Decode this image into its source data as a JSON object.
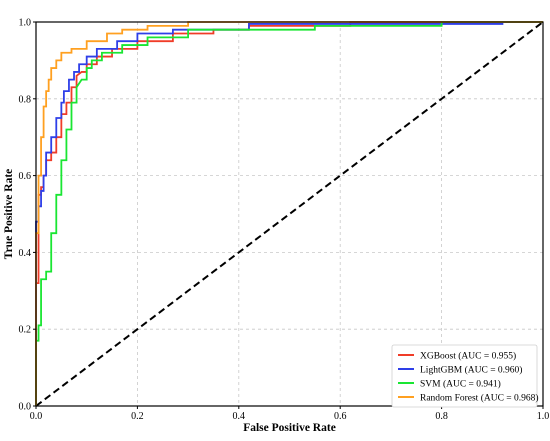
{
  "chart_data": {
    "type": "line",
    "title": "",
    "xlabel": "False Positive Rate",
    "ylabel": "True Positive Rate",
    "xlim": [
      0.0,
      1.0
    ],
    "ylim": [
      0.0,
      1.0
    ],
    "xticks": [
      "0.0",
      "0.2",
      "0.4",
      "0.6",
      "0.8",
      "1.0"
    ],
    "yticks": [
      "0.0",
      "0.2",
      "0.4",
      "0.6",
      "0.8",
      "1.0"
    ],
    "grid": true,
    "legend_position": "lower-right",
    "diagonal": {
      "style": "dashed",
      "color": "#000000",
      "x": [
        0.0,
        1.0
      ],
      "y": [
        0.0,
        1.0
      ]
    },
    "series": [
      {
        "name": "XGBoost (AUC = 0.955)",
        "color": "#f03c28",
        "x": [
          0.0,
          0.0,
          0.005,
          0.005,
          0.01,
          0.01,
          0.015,
          0.015,
          0.02,
          0.02,
          0.03,
          0.03,
          0.04,
          0.04,
          0.05,
          0.05,
          0.06,
          0.06,
          0.07,
          0.07,
          0.08,
          0.08,
          0.09,
          0.1,
          0.1,
          0.12,
          0.12,
          0.15,
          0.15,
          0.2,
          0.2,
          0.27,
          0.27,
          0.35,
          0.35,
          0.42,
          0.42,
          0.62,
          0.62,
          1.0
        ],
        "y": [
          0.0,
          0.32,
          0.32,
          0.55,
          0.55,
          0.57,
          0.57,
          0.6,
          0.6,
          0.64,
          0.64,
          0.66,
          0.66,
          0.7,
          0.7,
          0.76,
          0.76,
          0.79,
          0.79,
          0.83,
          0.83,
          0.86,
          0.87,
          0.87,
          0.89,
          0.89,
          0.91,
          0.91,
          0.93,
          0.93,
          0.95,
          0.95,
          0.97,
          0.97,
          0.98,
          0.98,
          0.99,
          0.99,
          1.0,
          1.0
        ]
      },
      {
        "name": "LightGBM (AUC = 0.960)",
        "color": "#2e3fe8",
        "x": [
          0.0,
          0.0,
          0.005,
          0.005,
          0.01,
          0.01,
          0.015,
          0.015,
          0.02,
          0.02,
          0.03,
          0.03,
          0.04,
          0.04,
          0.05,
          0.05,
          0.055,
          0.055,
          0.065,
          0.065,
          0.075,
          0.075,
          0.085,
          0.085,
          0.1,
          0.1,
          0.12,
          0.12,
          0.16,
          0.16,
          0.2,
          0.2,
          0.27,
          0.27,
          0.42,
          0.42,
          0.92,
          0.92,
          1.0
        ],
        "y": [
          0.0,
          0.48,
          0.48,
          0.52,
          0.52,
          0.56,
          0.56,
          0.6,
          0.6,
          0.66,
          0.66,
          0.7,
          0.7,
          0.75,
          0.75,
          0.79,
          0.79,
          0.82,
          0.82,
          0.85,
          0.85,
          0.87,
          0.87,
          0.89,
          0.89,
          0.91,
          0.91,
          0.93,
          0.93,
          0.95,
          0.95,
          0.97,
          0.97,
          0.98,
          0.98,
          0.995,
          0.995,
          1.0,
          1.0
        ]
      },
      {
        "name": "SVM (AUC = 0.941)",
        "color": "#19e632",
        "x": [
          0.0,
          0.0,
          0.005,
          0.005,
          0.01,
          0.01,
          0.02,
          0.02,
          0.03,
          0.03,
          0.04,
          0.04,
          0.05,
          0.05,
          0.06,
          0.06,
          0.07,
          0.07,
          0.08,
          0.08,
          0.09,
          0.1,
          0.1,
          0.11,
          0.11,
          0.13,
          0.13,
          0.17,
          0.17,
          0.22,
          0.22,
          0.3,
          0.3,
          0.55,
          0.55,
          0.8,
          0.8,
          1.0
        ],
        "y": [
          0.0,
          0.17,
          0.17,
          0.21,
          0.21,
          0.33,
          0.33,
          0.35,
          0.35,
          0.45,
          0.45,
          0.55,
          0.55,
          0.64,
          0.64,
          0.72,
          0.72,
          0.79,
          0.79,
          0.83,
          0.85,
          0.85,
          0.88,
          0.88,
          0.9,
          0.9,
          0.92,
          0.92,
          0.94,
          0.94,
          0.96,
          0.96,
          0.98,
          0.98,
          0.99,
          0.99,
          1.0,
          1.0
        ]
      },
      {
        "name": "Random Forest (AUC = 0.968)",
        "color": "#ffa020",
        "x": [
          0.0,
          0.0,
          0.005,
          0.005,
          0.01,
          0.01,
          0.015,
          0.015,
          0.02,
          0.02,
          0.025,
          0.025,
          0.03,
          0.03,
          0.04,
          0.04,
          0.05,
          0.05,
          0.07,
          0.07,
          0.1,
          0.1,
          0.14,
          0.14,
          0.17,
          0.17,
          0.22,
          0.22,
          0.3,
          0.3,
          1.0
        ],
        "y": [
          0.0,
          0.45,
          0.45,
          0.6,
          0.6,
          0.7,
          0.7,
          0.78,
          0.78,
          0.82,
          0.82,
          0.85,
          0.85,
          0.88,
          0.88,
          0.9,
          0.9,
          0.92,
          0.92,
          0.93,
          0.93,
          0.95,
          0.95,
          0.97,
          0.97,
          0.98,
          0.98,
          0.99,
          0.99,
          1.0,
          1.0
        ]
      }
    ]
  }
}
